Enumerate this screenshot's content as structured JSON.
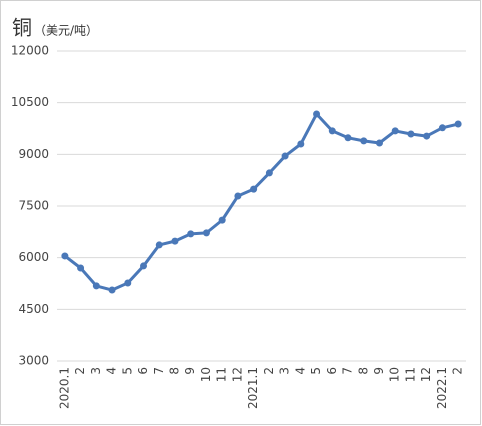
{
  "chart_data": {
    "type": "line",
    "title": "铜",
    "subtitle": "（美元/吨）",
    "categories": [
      "2020.1",
      "2",
      "3",
      "4",
      "5",
      "6",
      "7",
      "8",
      "9",
      "10",
      "11",
      "12",
      "2021.1",
      "2",
      "3",
      "4",
      "5",
      "6",
      "7",
      "8",
      "9",
      "10",
      "11",
      "12",
      "2022.1",
      "2"
    ],
    "series": [
      {
        "name": "铜",
        "color": "#4a78b8",
        "values": [
          6050,
          5700,
          5180,
          5060,
          5265,
          5760,
          6370,
          6480,
          6690,
          6720,
          7090,
          7790,
          7990,
          8460,
          8950,
          9300,
          10170,
          9680,
          9480,
          9390,
          9330,
          9680,
          9590,
          9530,
          9770,
          9880
        ]
      }
    ],
    "ylim": [
      3000,
      12000
    ],
    "yticks": [
      3000,
      4500,
      6000,
      7500,
      9000,
      10500,
      12000
    ],
    "grid": true
  }
}
